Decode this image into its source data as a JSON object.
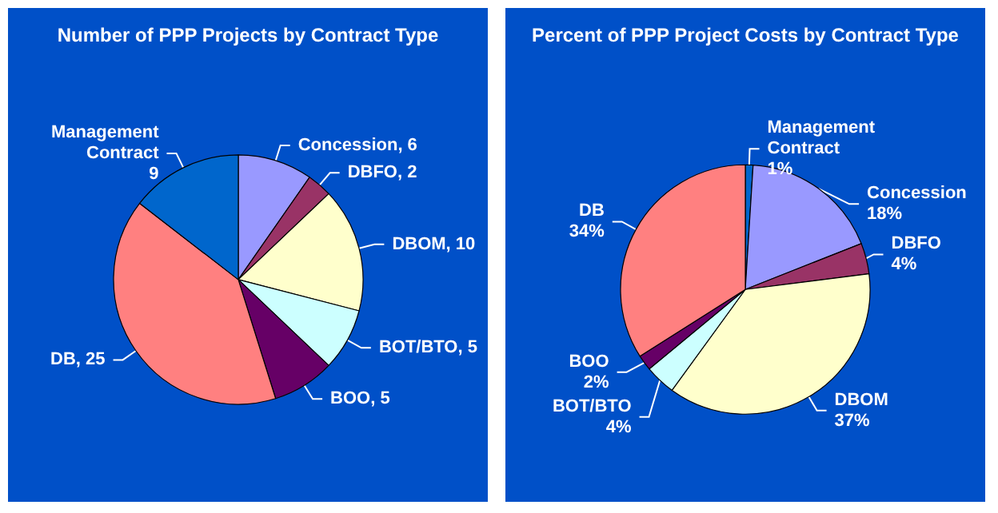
{
  "chart_data": [
    {
      "type": "pie",
      "title": "Number of PPP Projects by Contract Type",
      "categories": [
        "Concession",
        "DBFO",
        "DBOM",
        "BOT/BTO",
        "BOO",
        "DB",
        "Management Contract"
      ],
      "values": [
        6,
        2,
        10,
        5,
        5,
        25,
        9
      ],
      "colors": [
        "#9999ff",
        "#993366",
        "#ffffcc",
        "#ccffff",
        "#660066",
        "#ff8080",
        "#0066cc"
      ],
      "value_labels": [
        "6",
        "2",
        "10",
        "5",
        "5",
        "25",
        "9"
      ]
    },
    {
      "type": "pie",
      "title": "Percent of PPP Project Costs by Contract Type",
      "categories": [
        "Management Contract",
        "Concession",
        "DBFO",
        "DBOM",
        "BOT/BTO",
        "BOO",
        "DB"
      ],
      "values": [
        1,
        18,
        4,
        37,
        4,
        2,
        34
      ],
      "colors": [
        "#0066cc",
        "#9999ff",
        "#993366",
        "#ffffcc",
        "#ccffff",
        "#660066",
        "#ff8080"
      ],
      "value_labels": [
        "1%",
        "18%",
        "4%",
        "37%",
        "4%",
        "2%",
        "34%"
      ]
    }
  ]
}
